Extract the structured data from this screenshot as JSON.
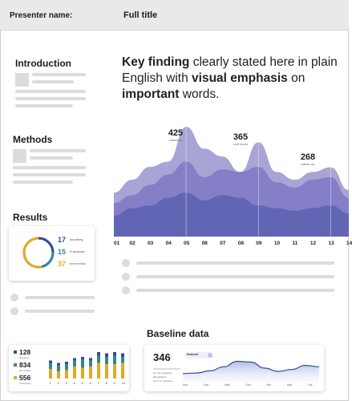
{
  "header": {
    "presenter_label": "Presenter name:",
    "title": "Full title"
  },
  "sections": {
    "introduction": "Introduction",
    "methods": "Methods",
    "results": "Results",
    "baseline": "Baseline data"
  },
  "key_finding": [
    {
      "text": "Key finding",
      "bold": true
    },
    {
      "text": " clearly stated here in plain English with ",
      "bold": false
    },
    {
      "text": "visual emphasis",
      "bold": true
    },
    {
      "text": " on ",
      "bold": false
    },
    {
      "text": "important",
      "bold": true
    },
    {
      "text": " words.",
      "bold": false
    }
  ],
  "colors": {
    "series_light": "#9a94cf",
    "series_mid": "#7b75c2",
    "series_dark": "#5a60b0",
    "teal": "#2f8a94",
    "gold": "#e6a823",
    "navy": "#384a9a"
  },
  "chart_data": [
    {
      "type": "area",
      "categories": [
        "01",
        "02",
        "03",
        "04",
        "05",
        "06",
        "07",
        "08",
        "09",
        "10",
        "11",
        "12",
        "13",
        "14"
      ],
      "ylim": [
        0,
        450
      ],
      "series": [
        {
          "values": [
            170,
            220,
            270,
            290,
            425,
            340,
            310,
            250,
            365,
            250,
            220,
            250,
            268,
            180
          ]
        },
        {
          "values": [
            130,
            160,
            200,
            240,
            290,
            230,
            260,
            250,
            270,
            210,
            190,
            220,
            230,
            150
          ]
        },
        {
          "values": [
            80,
            110,
            120,
            150,
            170,
            140,
            160,
            150,
            120,
            110,
            100,
            110,
            120,
            90
          ]
        }
      ],
      "annotations": [
        {
          "label": "425",
          "category": "05"
        },
        {
          "label": "365",
          "category": "09"
        },
        {
          "label": "268",
          "category": "13"
        }
      ]
    },
    {
      "type": "pie",
      "values": [
        17,
        15,
        37
      ],
      "labels": [
        "17",
        "15",
        "37"
      ]
    },
    {
      "type": "bar",
      "categories": [
        "1",
        "2",
        "3",
        "4",
        "5",
        "6",
        "7",
        "8",
        "9",
        "10"
      ],
      "series": [
        {
          "values": [
            2,
            2,
            2,
            2,
            2,
            2,
            3,
            3,
            3,
            3
          ]
        },
        {
          "values": [
            5,
            5,
            5,
            5,
            7,
            5,
            6,
            6,
            7,
            5
          ]
        },
        {
          "values": [
            8,
            6,
            7,
            10,
            9,
            10,
            13,
            12,
            12,
            13
          ]
        }
      ],
      "legend_values": [
        "128",
        "834",
        "556"
      ]
    },
    {
      "type": "line",
      "value_label": "346",
      "values": [
        0.3,
        0.32,
        0.4,
        0.55,
        0.75,
        0.72,
        0.5,
        0.38,
        0.45,
        0.6,
        0.55
      ],
      "ylim": [
        0,
        1
      ]
    }
  ]
}
